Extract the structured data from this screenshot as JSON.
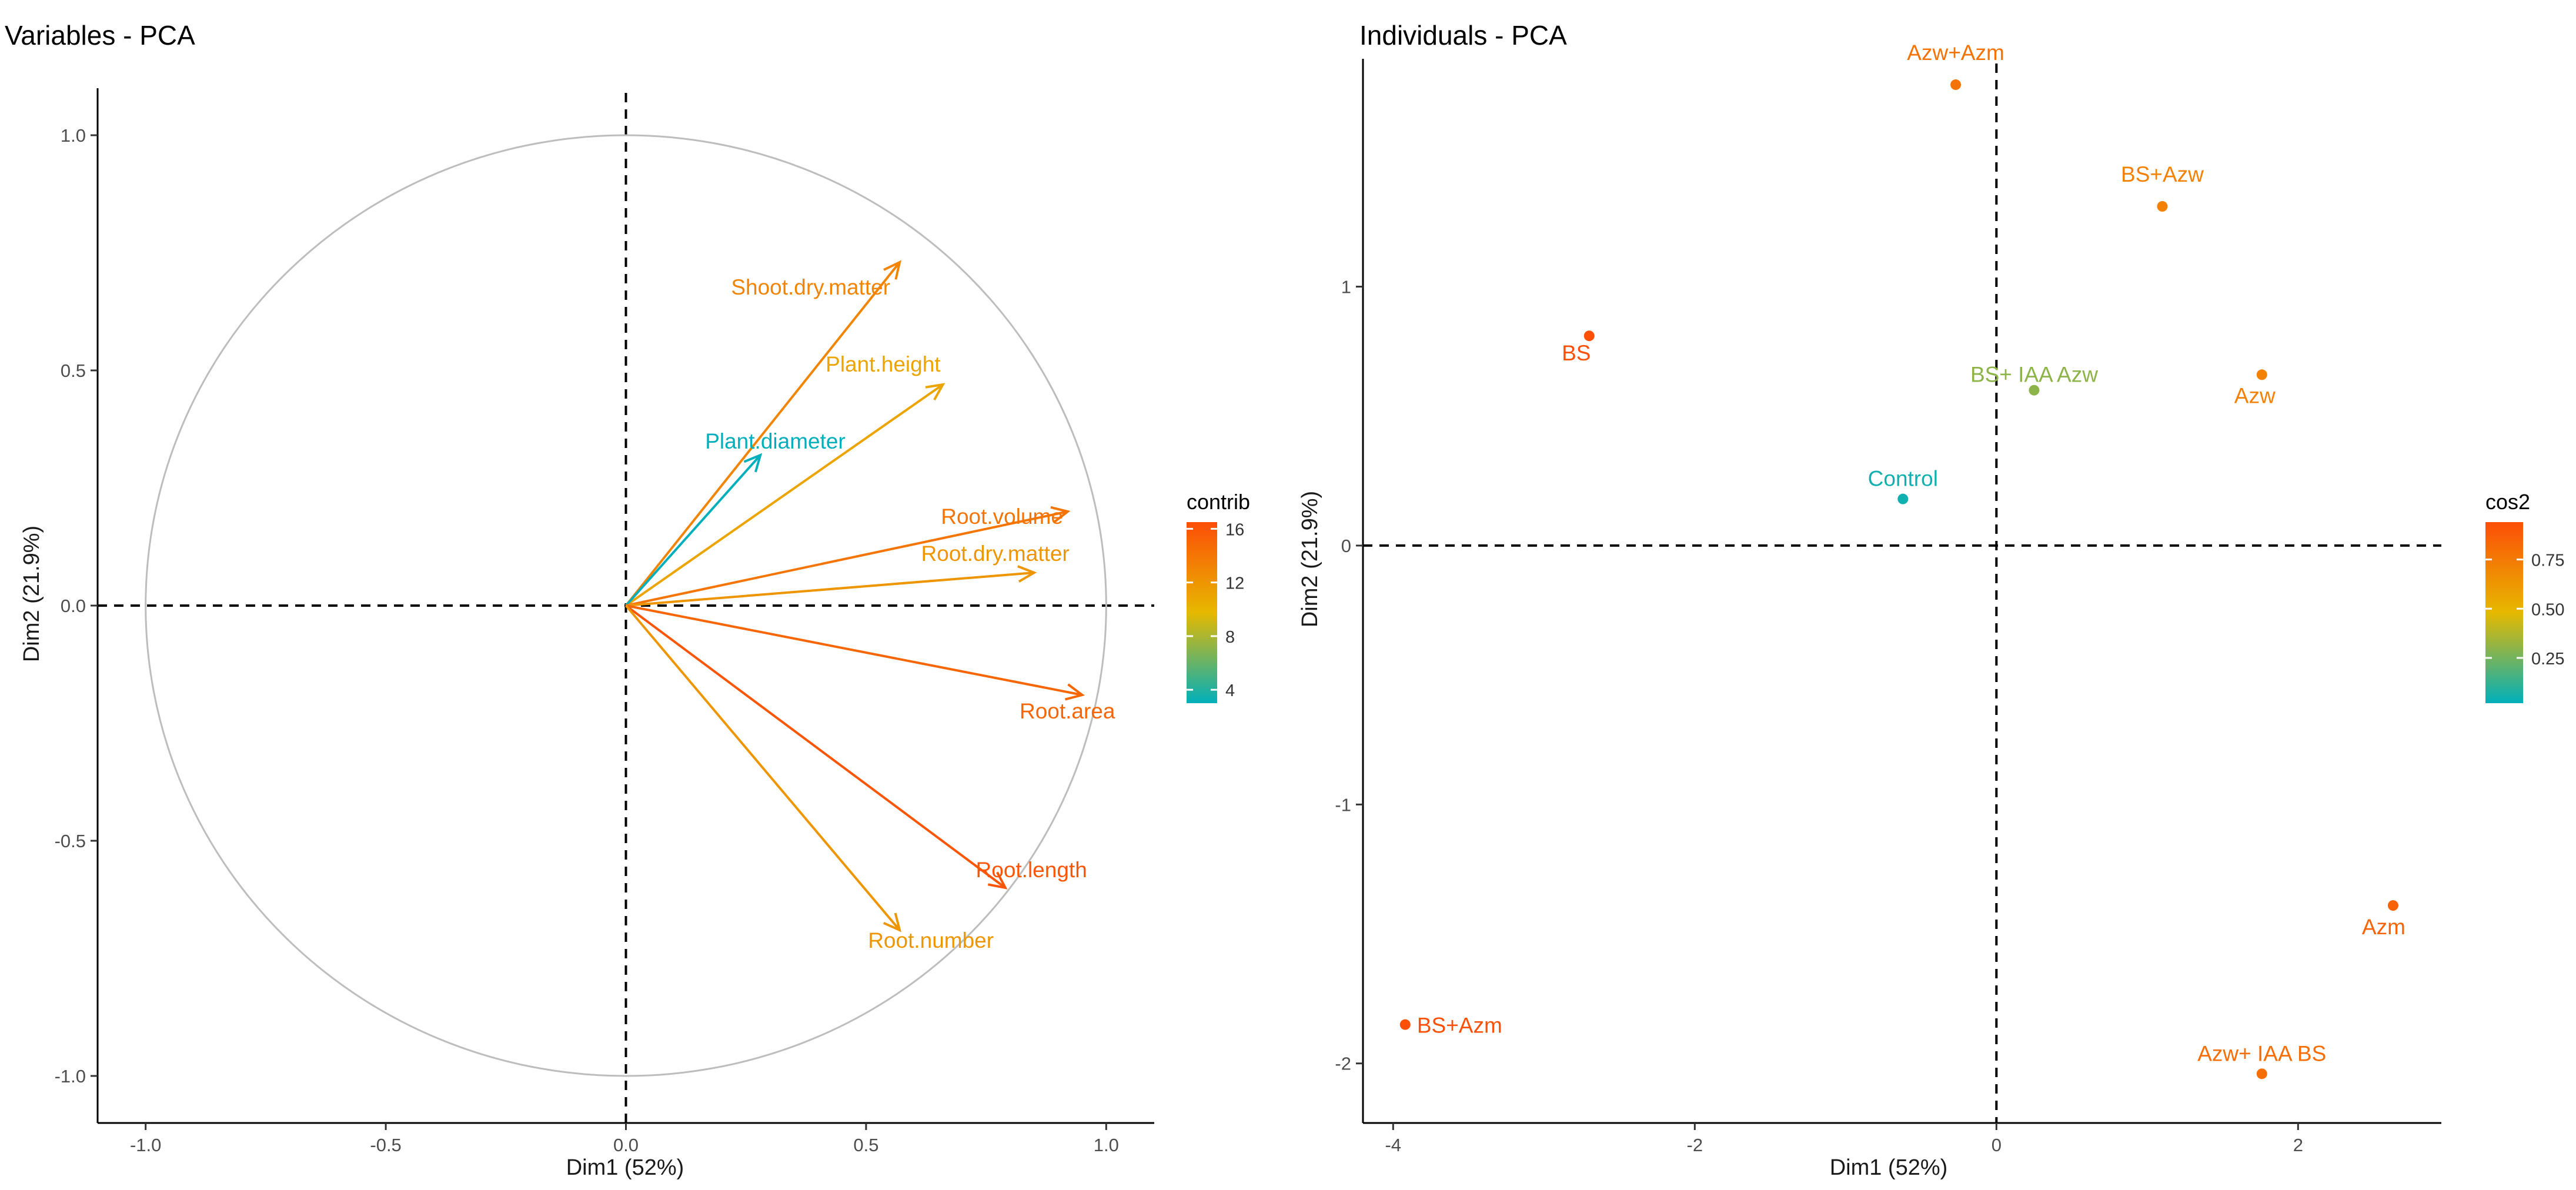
{
  "chart_data": [
    {
      "type": "scatter",
      "subtype": "pca-variables",
      "title": "Variables - PCA",
      "xlabel": "Dim1 (52%)",
      "ylabel": "Dim2 (21.9%)",
      "xlim": [
        -1.1,
        1.1
      ],
      "ylim": [
        -1.1,
        1.1
      ],
      "xticks": [
        -1.0,
        -0.5,
        0.0,
        0.5,
        1.0
      ],
      "yticks": [
        -1.0,
        -0.5,
        0.0,
        0.5,
        1.0
      ],
      "xtick_labels": [
        "-1.0",
        "-0.5",
        "0.0",
        "0.5",
        "1.0"
      ],
      "ytick_labels": [
        "-1.0",
        "-0.5",
        "0.0",
        "0.5",
        "1.0"
      ],
      "correlation_circle": true,
      "reference_lines": {
        "x": 0,
        "y": 0,
        "style": "dashed"
      },
      "variables": [
        {
          "name": "Shoot.dry.matter",
          "x": 0.57,
          "y": 0.73,
          "contrib": 13
        },
        {
          "name": "Plant.height",
          "x": 0.66,
          "y": 0.47,
          "contrib": 11
        },
        {
          "name": "Plant.diameter",
          "x": 0.28,
          "y": 0.32,
          "contrib": 3
        },
        {
          "name": "Root.volume",
          "x": 0.92,
          "y": 0.2,
          "contrib": 14
        },
        {
          "name": "Root.dry.matter",
          "x": 0.85,
          "y": 0.07,
          "contrib": 12
        },
        {
          "name": "Root.area",
          "x": 0.95,
          "y": -0.19,
          "contrib": 15
        },
        {
          "name": "Root.length",
          "x": 0.79,
          "y": -0.6,
          "contrib": 16
        },
        {
          "name": "Root.number",
          "x": 0.57,
          "y": -0.69,
          "contrib": 12
        }
      ],
      "legend": {
        "title": "contrib",
        "ticks": [
          4,
          8,
          12,
          16
        ],
        "tick_labels": [
          "4",
          "8",
          "12",
          "16"
        ],
        "range": [
          3,
          16.5
        ],
        "colors": [
          "#00AFBB",
          "#E7B800",
          "#FC4E07"
        ],
        "position": "right"
      }
    },
    {
      "type": "scatter",
      "subtype": "pca-individuals",
      "title": "Individuals - PCA",
      "xlabel": "Dim1 (52%)",
      "ylabel": "Dim2 (21.9%)",
      "xlim": [
        -4.2,
        2.95
      ],
      "ylim": [
        -2.23,
        1.88
      ],
      "xticks": [
        -4,
        -2,
        0,
        2
      ],
      "yticks": [
        -2,
        -1,
        0,
        1
      ],
      "xtick_labels": [
        "-4",
        "-2",
        "0",
        "2"
      ],
      "ytick_labels": [
        "-2",
        "-1",
        "0",
        "1"
      ],
      "reference_lines": {
        "x": 0,
        "y": 0,
        "style": "dashed"
      },
      "points": [
        {
          "name": "Azw+Azm",
          "x": -0.27,
          "y": 1.78,
          "cos2": 0.78
        },
        {
          "name": "BS+Azw",
          "x": 1.1,
          "y": 1.31,
          "cos2": 0.72
        },
        {
          "name": "BS",
          "x": -2.7,
          "y": 0.81,
          "cos2": 0.93
        },
        {
          "name": "BS+ IAA Azw",
          "x": 0.25,
          "y": 0.6,
          "cos2": 0.3
        },
        {
          "name": "Azw",
          "x": 1.76,
          "y": 0.66,
          "cos2": 0.72
        },
        {
          "name": "Control",
          "x": -0.62,
          "y": 0.18,
          "cos2": 0.05
        },
        {
          "name": "Azm",
          "x": 2.63,
          "y": -1.39,
          "cos2": 0.85
        },
        {
          "name": "BS+Azm",
          "x": -3.92,
          "y": -1.85,
          "cos2": 0.93
        },
        {
          "name": "Azw+ IAA BS",
          "x": 1.76,
          "y": -2.04,
          "cos2": 0.8
        }
      ],
      "legend": {
        "title": "cos2",
        "ticks": [
          0.25,
          0.5,
          0.75
        ],
        "tick_labels": [
          "0.25",
          "0.50",
          "0.75"
        ],
        "range": [
          0.02,
          0.94
        ],
        "colors": [
          "#00AFBB",
          "#E7B800",
          "#FC4E07"
        ],
        "position": "right"
      }
    }
  ]
}
